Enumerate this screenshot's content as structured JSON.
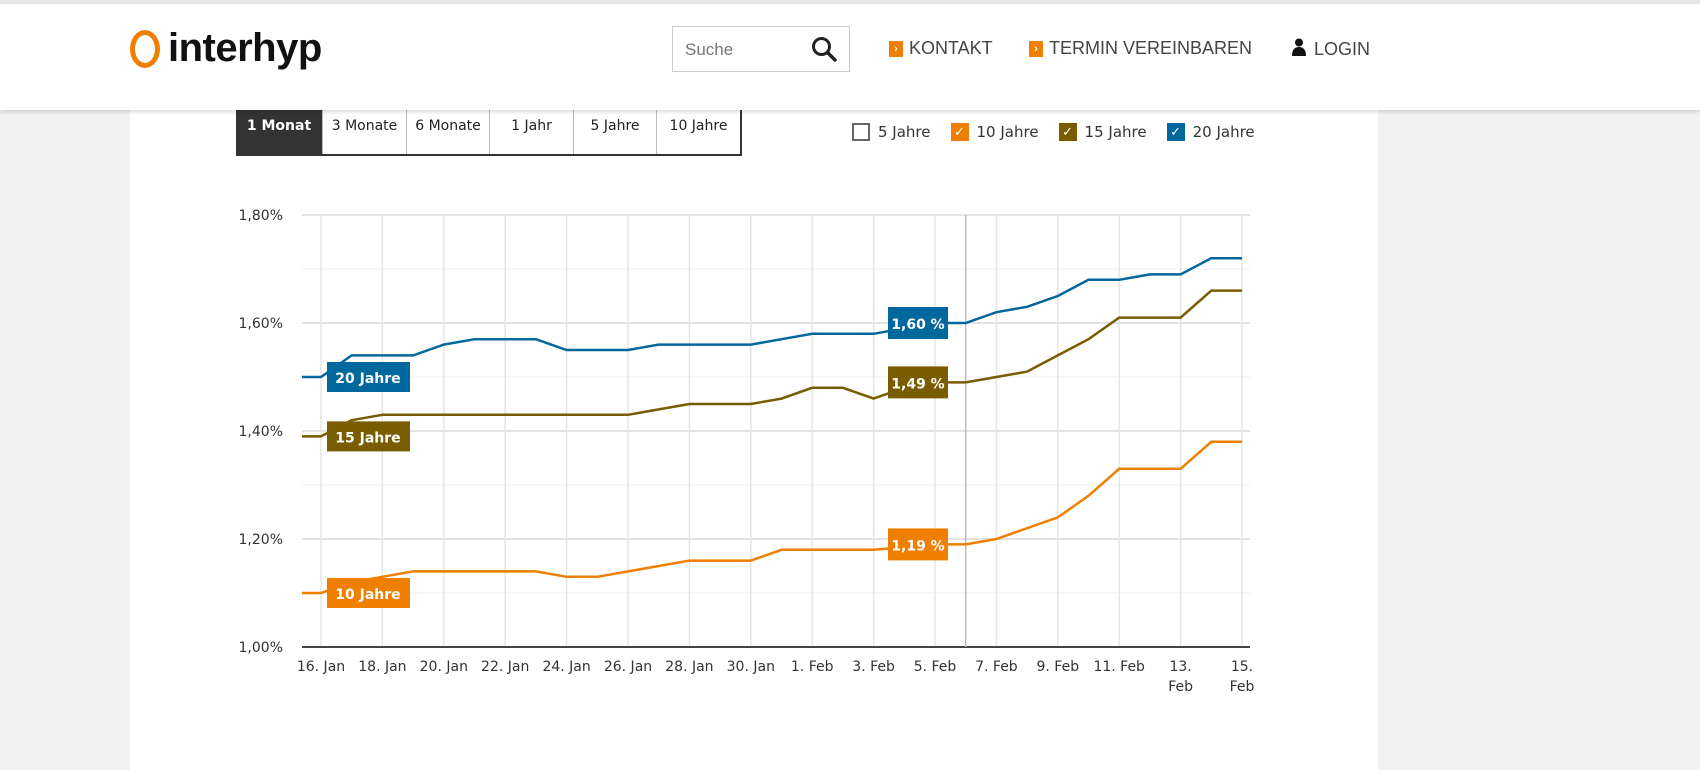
{
  "header": {
    "logo_text": "interhyp",
    "search_placeholder": "Suche",
    "nav": [
      {
        "label": "KONTAKT",
        "icon": "arrow-right-icon"
      },
      {
        "label": "TERMIN VEREINBAREN",
        "icon": "arrow-right-icon"
      },
      {
        "label": "LOGIN",
        "icon": "user-icon"
      }
    ]
  },
  "tabs": [
    {
      "label": "1 Monat",
      "active": true
    },
    {
      "label": "3 Monate"
    },
    {
      "label": "6 Monate"
    },
    {
      "label": "1 Jahr"
    },
    {
      "label": "5 Jahre"
    },
    {
      "label": "10 Jahre"
    }
  ],
  "legend": [
    {
      "label": "5 Jahre",
      "checked": false,
      "color": "#666666"
    },
    {
      "label": "10 Jahre",
      "checked": true,
      "color": "#ee7f00"
    },
    {
      "label": "15 Jahre",
      "checked": true,
      "color": "#7a5c00"
    },
    {
      "label": "20 Jahre",
      "checked": true,
      "color": "#00689c"
    }
  ],
  "chart_data": {
    "type": "line",
    "x": [
      "15.01",
      "16.01",
      "17.01",
      "18.01",
      "19.01",
      "20.01",
      "21.01",
      "22.01",
      "23.01",
      "24.01",
      "25.01",
      "26.01",
      "27.01",
      "28.01",
      "29.01",
      "30.01",
      "31.01",
      "01.02",
      "02.02",
      "03.02",
      "04.02",
      "05.02",
      "06.02",
      "07.02",
      "08.02",
      "09.02",
      "10.02",
      "11.02",
      "12.02",
      "13.02",
      "14.02",
      "15.02"
    ],
    "x_ticks": [
      "16. Jan",
      "18. Jan",
      "20. Jan",
      "22. Jan",
      "24. Jan",
      "26. Jan",
      "28. Jan",
      "30. Jan",
      "1. Feb",
      "3. Feb",
      "5. Feb",
      "7. Feb",
      "9. Feb",
      "11. Feb",
      "13. Feb",
      "15. Feb"
    ],
    "y_ticks": [
      "1,00%",
      "1,20%",
      "1,40%",
      "1,60%",
      "1,80%"
    ],
    "ylim": [
      1.0,
      1.8
    ],
    "grid": true,
    "hover_date": "06.02",
    "series": [
      {
        "name": "20 Jahre",
        "color": "#00689c",
        "hover_label": "1,60 %",
        "values": [
          1.5,
          1.5,
          1.54,
          1.54,
          1.54,
          1.56,
          1.57,
          1.57,
          1.57,
          1.55,
          1.55,
          1.55,
          1.56,
          1.56,
          1.56,
          1.56,
          1.57,
          1.58,
          1.58,
          1.58,
          1.59,
          1.6,
          1.6,
          1.62,
          1.63,
          1.65,
          1.68,
          1.68,
          1.69,
          1.69,
          1.72,
          1.72
        ]
      },
      {
        "name": "15 Jahre",
        "color": "#7a5c00",
        "hover_label": "1,49 %",
        "values": [
          1.39,
          1.39,
          1.42,
          1.43,
          1.43,
          1.43,
          1.43,
          1.43,
          1.43,
          1.43,
          1.43,
          1.43,
          1.44,
          1.45,
          1.45,
          1.45,
          1.46,
          1.48,
          1.48,
          1.46,
          1.48,
          1.49,
          1.49,
          1.5,
          1.51,
          1.54,
          1.57,
          1.61,
          1.61,
          1.61,
          1.66,
          1.66
        ]
      },
      {
        "name": "10 Jahre",
        "color": "#ee7f00",
        "hover_label": "1,19 %",
        "values": [
          1.1,
          1.1,
          1.12,
          1.13,
          1.14,
          1.14,
          1.14,
          1.14,
          1.14,
          1.13,
          1.13,
          1.14,
          1.15,
          1.16,
          1.16,
          1.16,
          1.18,
          1.18,
          1.18,
          1.18,
          1.185,
          1.19,
          1.19,
          1.2,
          1.22,
          1.24,
          1.28,
          1.33,
          1.33,
          1.33,
          1.38,
          1.38
        ]
      }
    ]
  }
}
